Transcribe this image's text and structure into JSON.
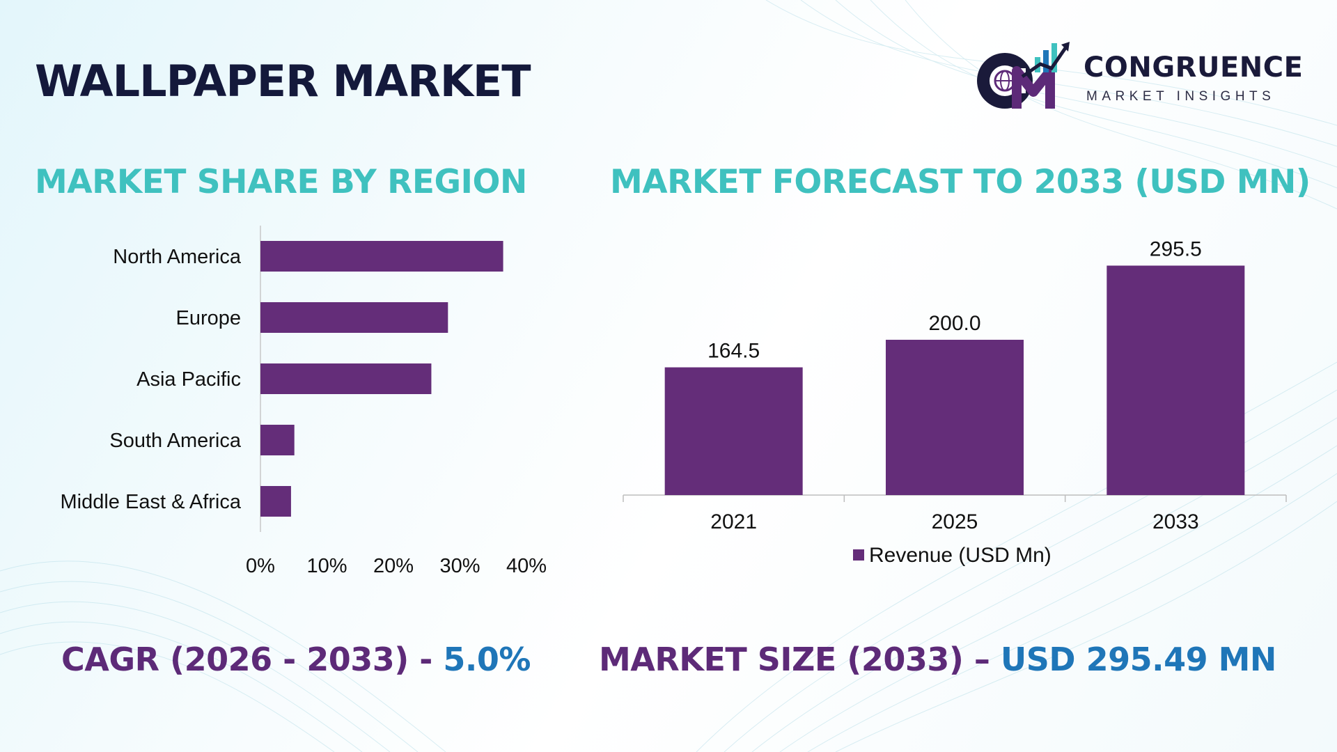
{
  "title": "WALLPAPER MARKET",
  "logo": {
    "name": "CONGRUENCE",
    "tagline": "MARKET INSIGHTS",
    "icon": "cmi-globe-chart-logo"
  },
  "colors": {
    "bar": "#642d79",
    "section_title": "#3fc1bf",
    "headline": "#14193b",
    "stat_label": "#5d2a78",
    "stat_value": "#1f76b8"
  },
  "stats": {
    "cagr_label": "CAGR (2026 - 2033) - ",
    "cagr_value": "5.0%",
    "size_label": "MARKET SIZE (2033) – ",
    "size_value": "USD 295.49 MN"
  },
  "chart_data": [
    {
      "type": "bar",
      "orientation": "horizontal",
      "title": "MARKET SHARE BY REGION",
      "categories": [
        "North America",
        "Europe",
        "Asia Pacific",
        "South America",
        "Middle East & Africa"
      ],
      "values": [
        36.5,
        28.2,
        25.7,
        5.1,
        4.6
      ],
      "unit": "%",
      "xlim": [
        0,
        40
      ],
      "xticks": [
        "0%",
        "10%",
        "20%",
        "30%",
        "40%"
      ],
      "grid": false,
      "legend": "none"
    },
    {
      "type": "bar",
      "orientation": "vertical",
      "title": "MARKET FORECAST TO 2033 (USD MN)",
      "categories": [
        "2021",
        "2025",
        "2033"
      ],
      "series": [
        {
          "name": "Revenue (USD Mn)",
          "values": [
            164.5,
            200.0,
            295.5
          ]
        }
      ],
      "data_labels": [
        "164.5",
        "200.0",
        "295.5"
      ],
      "ylim": [
        0,
        330
      ],
      "grid": false,
      "legend": "bottom"
    }
  ]
}
